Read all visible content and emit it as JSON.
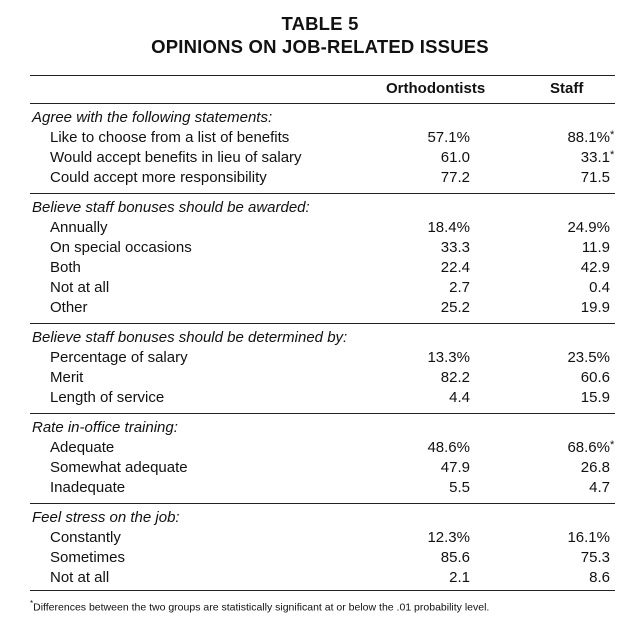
{
  "title_line1": "TABLE 5",
  "title_line2": "OPINIONS ON JOB-RELATED ISSUES",
  "columns": [
    "Orthodontists",
    "Staff"
  ],
  "sections": [
    {
      "heading": "Agree with the following statements:",
      "rows": [
        {
          "label": "Like to choose from a list of benefits",
          "orthodontists": "57.1%",
          "staff": "88.1%",
          "significant": "*"
        },
        {
          "label": "Would accept benefits in lieu of salary",
          "orthodontists": "61.0",
          "staff": "33.1",
          "significant": "*"
        },
        {
          "label": "Could accept more responsibility",
          "orthodontists": "77.2",
          "staff": "71.5",
          "significant": ""
        }
      ]
    },
    {
      "heading": "Believe staff bonuses should be awarded:",
      "rows": [
        {
          "label": "Annually",
          "orthodontists": "18.4%",
          "staff": "24.9%",
          "significant": ""
        },
        {
          "label": "On special occasions",
          "orthodontists": "33.3",
          "staff": "11.9",
          "significant": ""
        },
        {
          "label": "Both",
          "orthodontists": "22.4",
          "staff": "42.9",
          "significant": ""
        },
        {
          "label": "Not at all",
          "orthodontists": "2.7",
          "staff": "0.4",
          "significant": ""
        },
        {
          "label": "Other",
          "orthodontists": "25.2",
          "staff": "19.9",
          "significant": ""
        }
      ]
    },
    {
      "heading": "Believe staff bonuses should be determined by:",
      "rows": [
        {
          "label": "Percentage of salary",
          "orthodontists": "13.3%",
          "staff": "23.5%",
          "significant": ""
        },
        {
          "label": "Merit",
          "orthodontists": "82.2",
          "staff": "60.6",
          "significant": ""
        },
        {
          "label": "Length of service",
          "orthodontists": "4.4",
          "staff": "15.9",
          "significant": ""
        }
      ]
    },
    {
      "heading": "Rate in-office training:",
      "rows": [
        {
          "label": "Adequate",
          "orthodontists": "48.6%",
          "staff": "68.6%",
          "significant": "*"
        },
        {
          "label": "Somewhat adequate",
          "orthodontists": "47.9",
          "staff": "26.8",
          "significant": ""
        },
        {
          "label": "Inadequate",
          "orthodontists": "5.5",
          "staff": "4.7",
          "significant": ""
        }
      ]
    },
    {
      "heading": "Feel stress on the job:",
      "rows": [
        {
          "label": "Constantly",
          "orthodontists": "12.3%",
          "staff": "16.1%",
          "significant": ""
        },
        {
          "label": "Sometimes",
          "orthodontists": "85.6",
          "staff": "75.3",
          "significant": ""
        },
        {
          "label": "Not at all",
          "orthodontists": "2.1",
          "staff": "8.6",
          "significant": ""
        }
      ]
    }
  ],
  "footnote_marker": "*",
  "footnote": "Differences between the two groups are statistically significant at or below the .01 probability level."
}
